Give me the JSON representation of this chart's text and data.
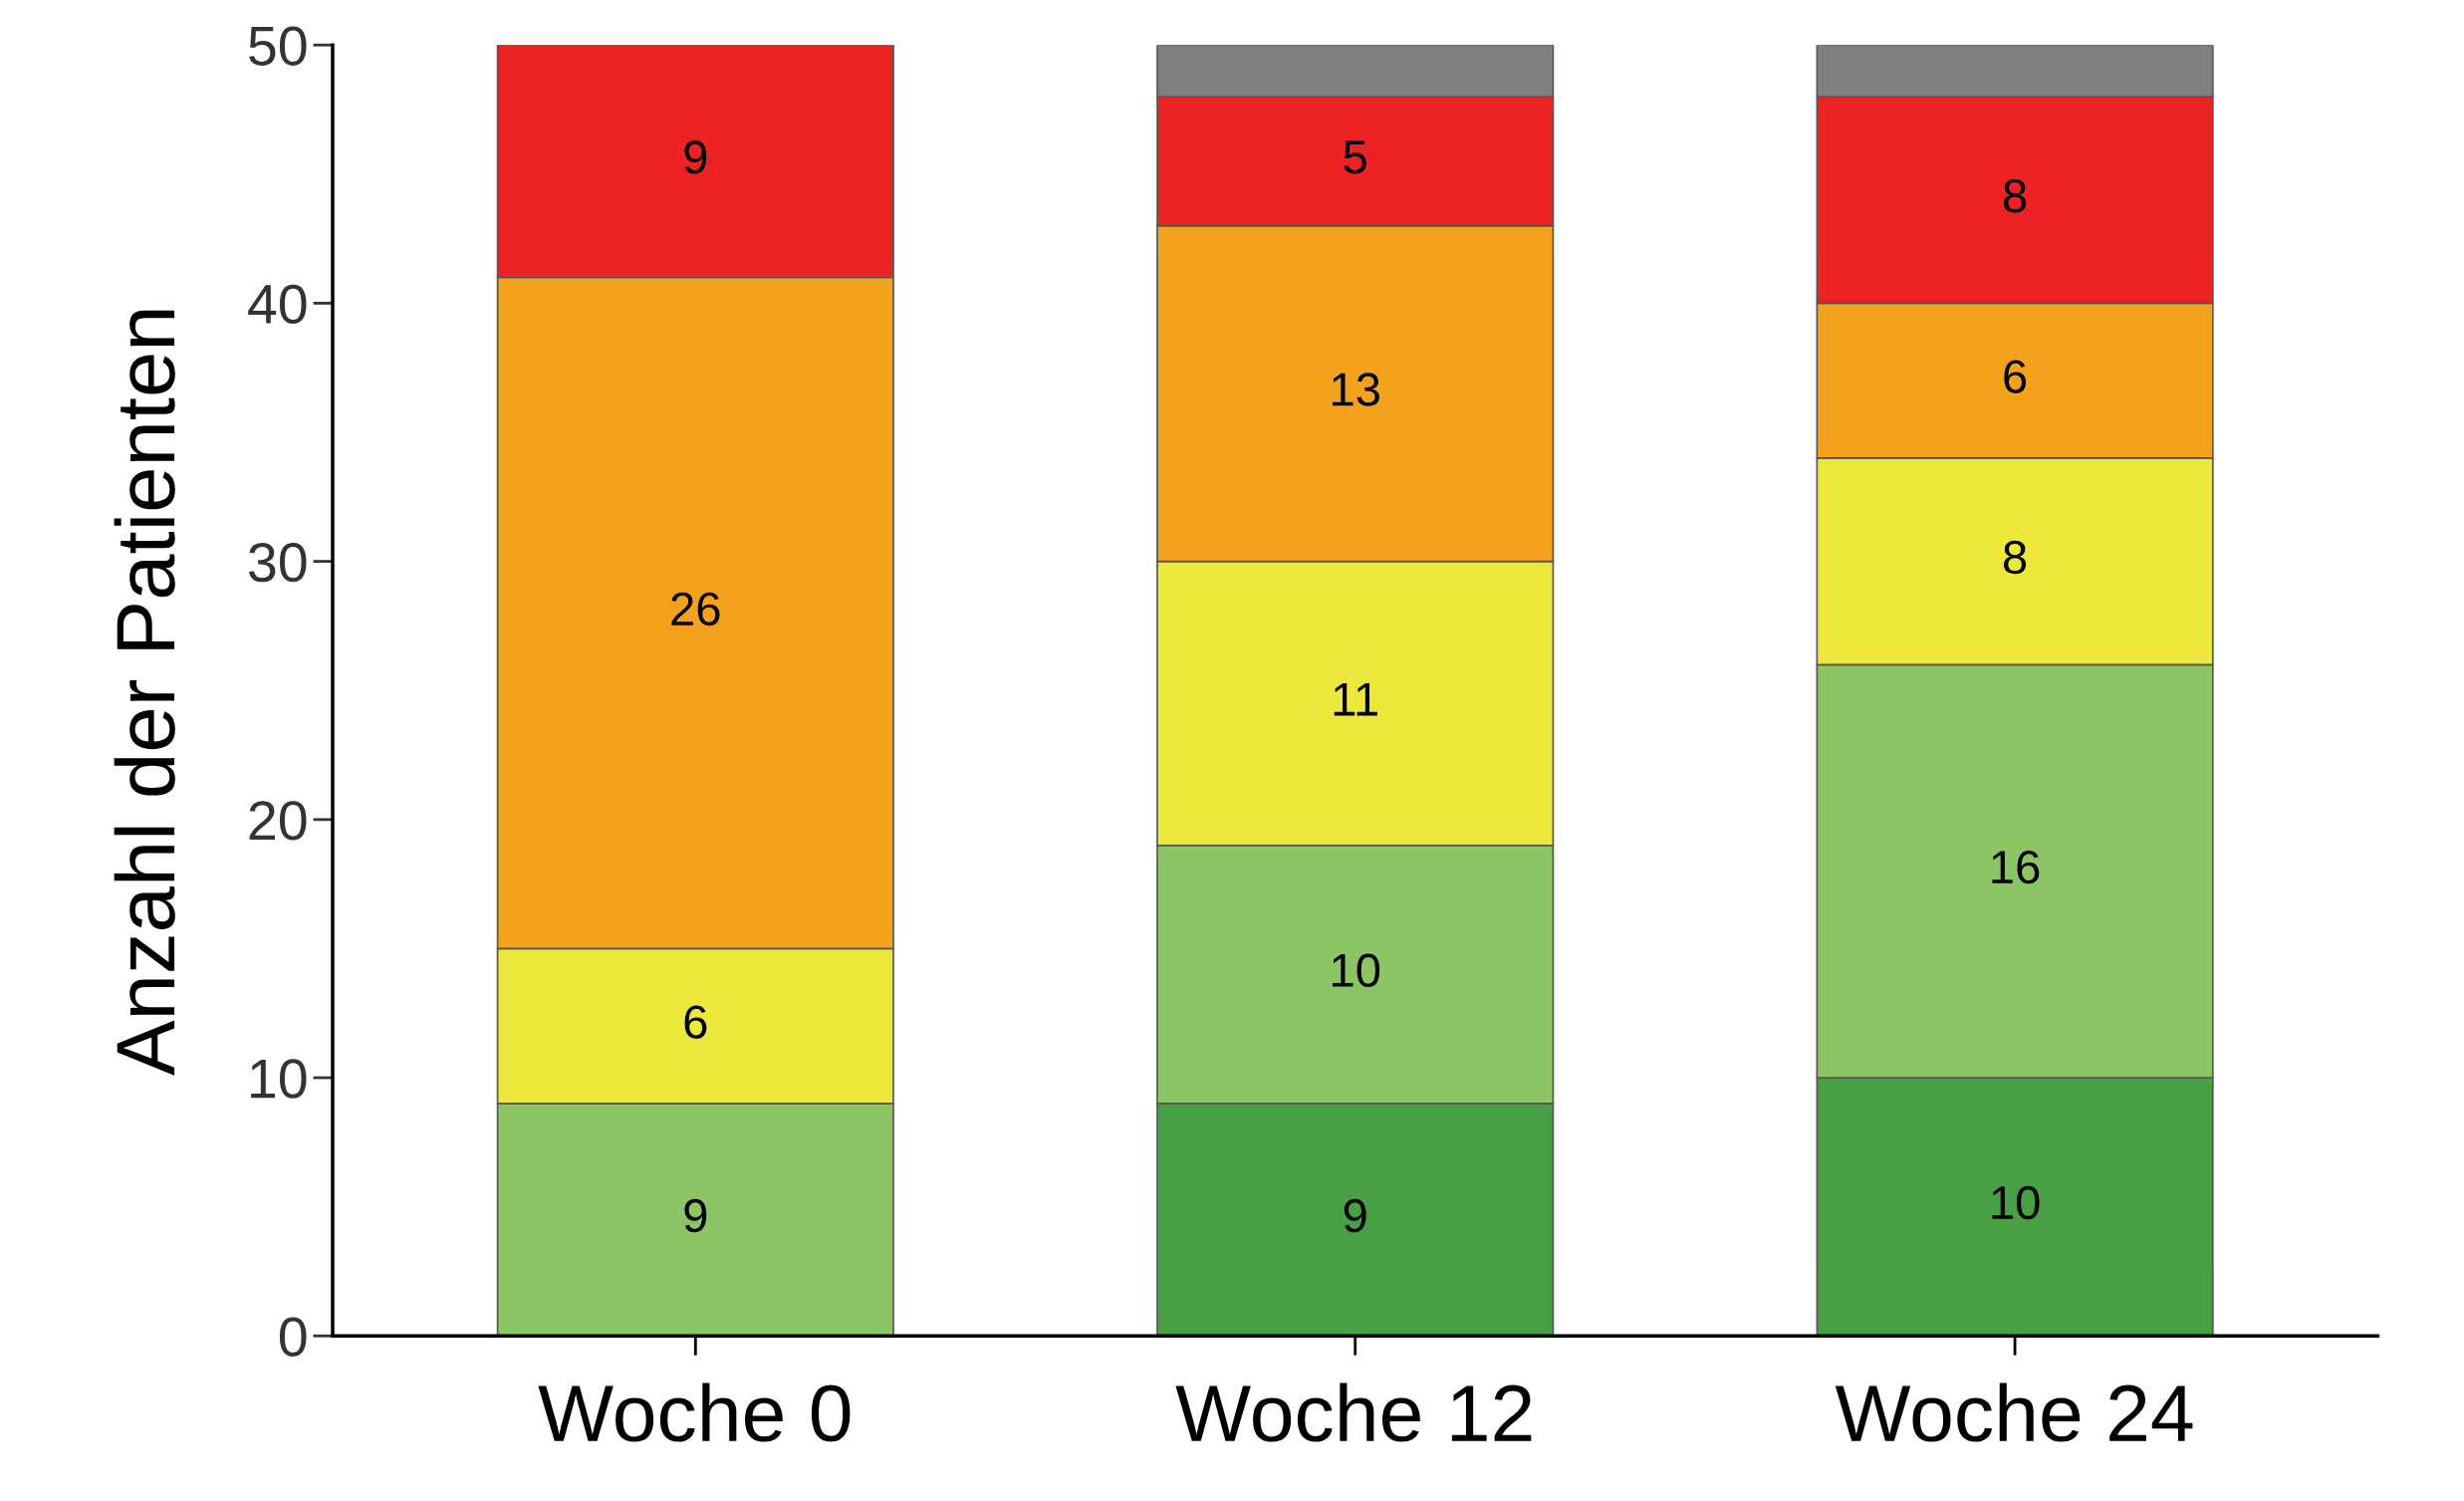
{
  "chart_data": {
    "type": "bar",
    "stacked": true,
    "ylabel": "Anzahl der Patienten",
    "categories": [
      "Woche 0",
      "Woche 12",
      "Woche 24"
    ],
    "series": [
      {
        "color": "#48a044",
        "values": [
          null,
          9,
          10
        ],
        "value_labels": [
          null,
          "9",
          "10"
        ]
      },
      {
        "color": "#8cc664",
        "values": [
          9,
          10,
          16
        ],
        "value_labels": [
          "9",
          "10",
          "16"
        ]
      },
      {
        "color": "#ece83c",
        "values": [
          6,
          11,
          8
        ],
        "value_labels": [
          "6",
          "11",
          "8"
        ]
      },
      {
        "color": "#f4a21e",
        "values": [
          26,
          13,
          6
        ],
        "value_labels": [
          "26",
          "13",
          "6"
        ]
      },
      {
        "color": "#ec2224",
        "values": [
          9,
          5,
          8
        ],
        "value_labels": [
          "9",
          "5",
          "8"
        ]
      },
      {
        "color": "#808080",
        "values": [
          null,
          2,
          2
        ],
        "value_labels": [
          null,
          null,
          null
        ]
      }
    ],
    "ylim": [
      0,
      50
    ],
    "yticks": [
      0,
      10,
      20,
      30,
      40,
      50
    ],
    "grid": false,
    "legend": false
  }
}
